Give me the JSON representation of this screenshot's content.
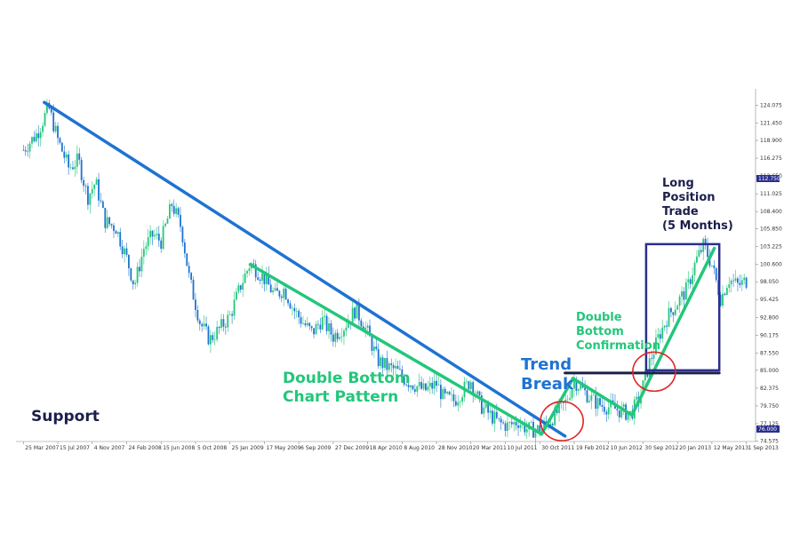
{
  "chart_data": {
    "type": "candlestick",
    "title": "",
    "xlabel": "",
    "ylabel": "",
    "ylim": [
      74.5,
      126.5
    ],
    "xlim": [
      "2007-03-01",
      "2013-10-01"
    ],
    "x_ticks": [
      "25 Mar 2007",
      "15 Jul 2007",
      "4 Nov 2007",
      "24 Feb 2008",
      "15 Jun 2008",
      "5 Oct 2008",
      "25 Jan 2009",
      "17 May 2009",
      "6 Sep 2009",
      "27 Dec 2009",
      "18 Apr 2010",
      "8 Aug 2010",
      "28 Nov 2010",
      "20 Mar 2011",
      "10 Jul 2011",
      "30 Oct 2011",
      "19 Feb 2012",
      "10 Jun 2012",
      "30 Sep 2012",
      "20 Jan 2013",
      "12 May 2013",
      "1 Sep 2013"
    ],
    "y_ticks": [
      "124.075",
      "121.450",
      "118.900",
      "116.275",
      "113.650",
      "111.025",
      "108.400",
      "105.850",
      "103.225",
      "100.600",
      "98.050",
      "95.425",
      "92.800",
      "90.175",
      "87.550",
      "85.000",
      "82.375",
      "79.750",
      "77.125",
      "74.575"
    ],
    "last_price_label": "112.750",
    "current_price_label": "76.000",
    "price_path": [
      {
        "x": "2007-03-25",
        "y": 117.5
      },
      {
        "x": "2007-05-10",
        "y": 120.0
      },
      {
        "x": "2007-06-15",
        "y": 123.8
      },
      {
        "x": "2007-07-15",
        "y": 119.0
      },
      {
        "x": "2007-08-20",
        "y": 114.8
      },
      {
        "x": "2007-09-20",
        "y": 116.0
      },
      {
        "x": "2007-10-20",
        "y": 110.5
      },
      {
        "x": "2007-11-15",
        "y": 112.8
      },
      {
        "x": "2007-12-15",
        "y": 107.0
      },
      {
        "x": "2008-01-20",
        "y": 106.0
      },
      {
        "x": "2008-02-24",
        "y": 101.5
      },
      {
        "x": "2008-03-20",
        "y": 97.5
      },
      {
        "x": "2008-04-20",
        "y": 103.0
      },
      {
        "x": "2008-05-20",
        "y": 105.0
      },
      {
        "x": "2008-06-15",
        "y": 104.0
      },
      {
        "x": "2008-07-20",
        "y": 109.5
      },
      {
        "x": "2008-08-20",
        "y": 106.0
      },
      {
        "x": "2008-09-15",
        "y": 98.5
      },
      {
        "x": "2008-10-20",
        "y": 92.0
      },
      {
        "x": "2008-11-20",
        "y": 89.5
      },
      {
        "x": "2008-12-20",
        "y": 91.0
      },
      {
        "x": "2009-01-25",
        "y": 93.0
      },
      {
        "x": "2009-03-01",
        "y": 97.5
      },
      {
        "x": "2009-04-01",
        "y": 100.8
      },
      {
        "x": "2009-05-17",
        "y": 98.5
      },
      {
        "x": "2009-06-20",
        "y": 96.0
      },
      {
        "x": "2009-07-20",
        "y": 97.0
      },
      {
        "x": "2009-08-20",
        "y": 94.0
      },
      {
        "x": "2009-09-20",
        "y": 92.0
      },
      {
        "x": "2009-10-20",
        "y": 90.5
      },
      {
        "x": "2009-11-20",
        "y": 92.5
      },
      {
        "x": "2009-12-27",
        "y": 90.0
      },
      {
        "x": "2010-02-01",
        "y": 91.5
      },
      {
        "x": "2010-03-10",
        "y": 94.0
      },
      {
        "x": "2010-04-18",
        "y": 90.5
      },
      {
        "x": "2010-05-20",
        "y": 86.5
      },
      {
        "x": "2010-06-20",
        "y": 85.5
      },
      {
        "x": "2010-07-20",
        "y": 85.0
      },
      {
        "x": "2010-08-20",
        "y": 83.5
      },
      {
        "x": "2010-09-20",
        "y": 82.8
      },
      {
        "x": "2010-10-20",
        "y": 82.0
      },
      {
        "x": "2010-11-28",
        "y": 83.0
      },
      {
        "x": "2010-12-20",
        "y": 81.0
      },
      {
        "x": "2011-01-25",
        "y": 80.5
      },
      {
        "x": "2011-03-20",
        "y": 83.5
      },
      {
        "x": "2011-04-20",
        "y": 79.8
      },
      {
        "x": "2011-05-20",
        "y": 78.5
      },
      {
        "x": "2011-06-20",
        "y": 77.2
      },
      {
        "x": "2011-07-20",
        "y": 76.8
      },
      {
        "x": "2011-08-20",
        "y": 77.5
      },
      {
        "x": "2011-09-20",
        "y": 76.3
      },
      {
        "x": "2011-10-20",
        "y": 76.2
      },
      {
        "x": "2011-11-20",
        "y": 77.0
      },
      {
        "x": "2011-12-20",
        "y": 78.5
      },
      {
        "x": "2012-01-20",
        "y": 80.0
      },
      {
        "x": "2012-02-19",
        "y": 83.5
      },
      {
        "x": "2012-03-20",
        "y": 82.0
      },
      {
        "x": "2012-04-20",
        "y": 80.5
      },
      {
        "x": "2012-05-20",
        "y": 79.8
      },
      {
        "x": "2012-06-20",
        "y": 79.5
      },
      {
        "x": "2012-07-20",
        "y": 79.0
      },
      {
        "x": "2012-08-20",
        "y": 78.5
      },
      {
        "x": "2012-09-20",
        "y": 81.0
      },
      {
        "x": "2012-10-20",
        "y": 86.0
      },
      {
        "x": "2012-11-20",
        "y": 90.0
      },
      {
        "x": "2012-12-20",
        "y": 93.0
      },
      {
        "x": "2013-01-20",
        "y": 95.0
      },
      {
        "x": "2013-02-20",
        "y": 97.0
      },
      {
        "x": "2013-03-20",
        "y": 101.0
      },
      {
        "x": "2013-04-15",
        "y": 103.5
      },
      {
        "x": "2013-05-12",
        "y": 100.5
      },
      {
        "x": "2013-06-10",
        "y": 95.5
      },
      {
        "x": "2013-07-05",
        "y": 98.5
      },
      {
        "x": "2013-08-05",
        "y": 97.5
      },
      {
        "x": "2013-09-01",
        "y": 98.2
      }
    ],
    "trendlines": [
      {
        "id": "blue-trendline",
        "color": "#1e73d2",
        "from": {
          "x": "2007-06-01",
          "y": 124.5
        },
        "to": {
          "x": "2012-01-20",
          "y": 75.3
        }
      },
      {
        "id": "pattern-upper",
        "color": "#22c77a",
        "from": {
          "x": "2009-04-01",
          "y": 100.6
        },
        "to": {
          "x": "2011-11-05",
          "y": 75.6
        }
      },
      {
        "id": "pattern-up-leg",
        "color": "#22c77a",
        "from": {
          "x": "2011-11-05",
          "y": 75.6
        },
        "to": {
          "x": "2012-02-15",
          "y": 83.8
        }
      },
      {
        "id": "pattern-down-leg",
        "color": "#22c77a",
        "from": {
          "x": "2012-02-15",
          "y": 83.8
        },
        "to": {
          "x": "2012-08-25",
          "y": 78.4
        }
      },
      {
        "id": "long-trade-line",
        "color": "#22c77a",
        "from": {
          "x": "2012-08-25",
          "y": 78.4
        },
        "to": {
          "x": "2013-05-20",
          "y": 103.0
        }
      },
      {
        "id": "confirmation-level",
        "color": "#1b1f4a",
        "from": {
          "x": "2012-01-20",
          "y": 84.6
        },
        "to": {
          "x": "2013-06-05",
          "y": 84.6
        }
      }
    ],
    "trade_box": {
      "from": {
        "x": "2012-10-10",
        "y": 85.0
      },
      "to": {
        "x": "2013-06-05",
        "y": 103.6
      }
    },
    "circles": [
      {
        "id": "break-circle",
        "center": {
          "x": "2012-01-10",
          "y": 77.5
        }
      },
      {
        "id": "confirmation-circle",
        "center": {
          "x": "2012-11-05",
          "y": 84.8
        }
      }
    ],
    "annotations": {
      "support": "Support",
      "double_bottom_line1": "Double Bottom",
      "double_bottom_line2": "Chart Pattern",
      "trend_line1": "Trend",
      "trend_line2": "Break",
      "confirm_line1": "Double",
      "confirm_line2": "Bottom",
      "confirm_line3": "Confirmation",
      "long_line1": "Long",
      "long_line2": "Position",
      "long_line3": "Trade",
      "long_line4": "(5 Months)"
    },
    "colors": {
      "candle_up": "#22c77a",
      "candle_down": "#1e73d2",
      "trendline_blue": "#1e73d2",
      "pattern_green": "#22c77a",
      "confirmation_line": "#1b1f4a",
      "trade_box": "#2b2f8f",
      "circles": "#e02424",
      "support_text": "#1b1f4a",
      "trend_break_text": "#1e73d2"
    }
  }
}
